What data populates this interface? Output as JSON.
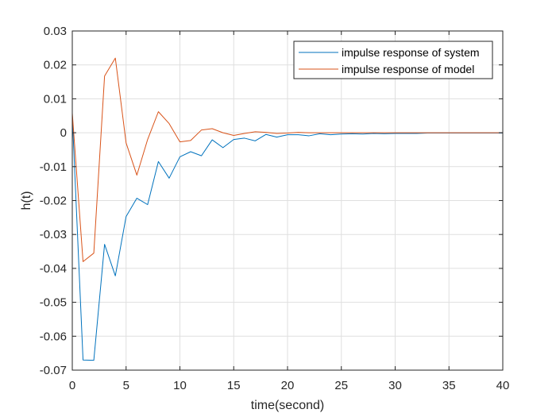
{
  "chart_data": {
    "type": "line",
    "title": "",
    "xlabel": "time(second)",
    "ylabel": "h(t)",
    "xlim": [
      0,
      40
    ],
    "ylim": [
      -0.07,
      0.03
    ],
    "grid": true,
    "legend_position": "top-right",
    "x_ticks": [
      0,
      5,
      10,
      15,
      20,
      25,
      30,
      35,
      40
    ],
    "x_tick_labels": [
      "0",
      "5",
      "10",
      "15",
      "20",
      "25",
      "30",
      "35",
      "40"
    ],
    "y_ticks": [
      0.03,
      0.02,
      0.01,
      0,
      -0.01,
      -0.02,
      -0.03,
      -0.04,
      -0.05,
      -0.06,
      -0.07
    ],
    "y_tick_labels": [
      "0.03",
      "0.02",
      "0.01",
      "0",
      "-0.01",
      "-0.02",
      "-0.03",
      "-0.04",
      "-0.05",
      "-0.06",
      "-0.07"
    ],
    "x": [
      0,
      1,
      2,
      3,
      4,
      5,
      6,
      7,
      8,
      9,
      10,
      11,
      12,
      13,
      14,
      15,
      16,
      17,
      18,
      19,
      20,
      21,
      22,
      23,
      24,
      25,
      26,
      27,
      28,
      29,
      30,
      31,
      32,
      33,
      34,
      35,
      36,
      37,
      38,
      39,
      40
    ],
    "series": [
      {
        "name": "impulse response of system",
        "color": "#0072BD",
        "values": [
          0.005,
          -0.067,
          -0.0671,
          -0.0329,
          -0.0422,
          -0.0247,
          -0.0193,
          -0.0212,
          -0.0085,
          -0.0134,
          -0.0071,
          -0.0056,
          -0.0068,
          -0.0021,
          -0.0044,
          -0.002,
          -0.0016,
          -0.0024,
          -0.0005,
          -0.0013,
          -0.0006,
          -0.0006,
          -0.0009,
          -0.0003,
          -0.0006,
          -0.0004,
          -0.0003,
          -0.0004,
          -0.0002,
          -0.0003,
          -0.0002,
          -0.0002,
          -0.0002,
          -0.0001,
          -0.0001,
          -0.0001,
          -0.0001,
          -0.0001,
          -0.0001,
          -0.0001,
          -0.0001
        ]
      },
      {
        "name": "impulse response of model",
        "color": "#D95319",
        "values": [
          0.0058,
          -0.038,
          -0.0355,
          0.0167,
          0.022,
          -0.003,
          -0.0125,
          -0.002,
          0.0062,
          0.0027,
          -0.0027,
          -0.0023,
          0.0008,
          0.0012,
          0.0,
          -0.0008,
          -0.0002,
          0.0003,
          0.0001,
          -0.0002,
          -0.0001,
          0.0001,
          0.0,
          0.0,
          0.0,
          0.0,
          0.0,
          0.0,
          0.0,
          0.0,
          0.0,
          0.0,
          0.0,
          0.0,
          0.0,
          0.0,
          0.0,
          0.0,
          0.0,
          0.0,
          0.0
        ]
      }
    ]
  }
}
